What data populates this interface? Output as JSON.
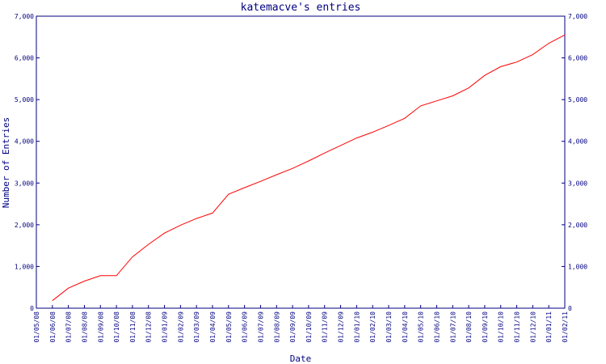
{
  "chart_data": {
    "type": "line",
    "title": "katemacve's entries",
    "xlabel": "Date",
    "ylabel": "Number of Entries",
    "ylim": [
      0,
      7000
    ],
    "y_ticks": [
      "0",
      "1,000",
      "2,000",
      "3,000",
      "4,000",
      "5,000",
      "6,000",
      "7,000"
    ],
    "y_tick_values": [
      0,
      1000,
      2000,
      3000,
      4000,
      5000,
      6000,
      7000
    ],
    "x_ticks": [
      "01/05/08",
      "01/06/08",
      "01/07/08",
      "01/08/08",
      "01/09/08",
      "01/10/08",
      "01/11/08",
      "01/12/08",
      "01/01/09",
      "01/02/09",
      "01/03/09",
      "01/04/09",
      "01/05/09",
      "01/06/09",
      "01/07/09",
      "01/08/09",
      "01/09/09",
      "01/10/09",
      "01/11/09",
      "01/12/09",
      "01/01/10",
      "01/02/10",
      "01/03/10",
      "01/04/10",
      "01/05/10",
      "01/06/10",
      "01/07/10",
      "01/08/10",
      "01/09/10",
      "01/10/10",
      "01/11/10",
      "01/12/10",
      "01/01/11",
      "01/02/11"
    ],
    "grid": false,
    "colors": {
      "line": "#ff0000",
      "axis": "#000080",
      "text": "#000080"
    },
    "series": [
      {
        "x": [
          "01/06/08",
          "01/07/08",
          "01/08/08",
          "01/09/08",
          "01/10/08",
          "01/11/08",
          "01/12/08",
          "01/01/09",
          "01/02/09",
          "01/03/09",
          "01/04/09",
          "01/05/09",
          "01/06/09",
          "01/07/09",
          "01/08/09",
          "01/09/09",
          "01/10/09",
          "01/11/09",
          "01/12/09",
          "01/01/10",
          "01/02/10",
          "01/03/10",
          "01/04/10",
          "01/05/10",
          "01/06/10",
          "01/07/10",
          "01/08/10",
          "01/09/10",
          "01/10/10",
          "01/11/10",
          "01/12/10",
          "01/01/11",
          "01/02/11"
        ],
        "values": [
          180,
          480,
          650,
          780,
          780,
          1230,
          1530,
          1800,
          1990,
          2150,
          2280,
          2730,
          2890,
          3040,
          3200,
          3350,
          3530,
          3720,
          3900,
          4080,
          4220,
          4380,
          4550,
          4850,
          4970,
          5090,
          5280,
          5580,
          5790,
          5900,
          6080,
          6350,
          6550
        ]
      }
    ]
  }
}
